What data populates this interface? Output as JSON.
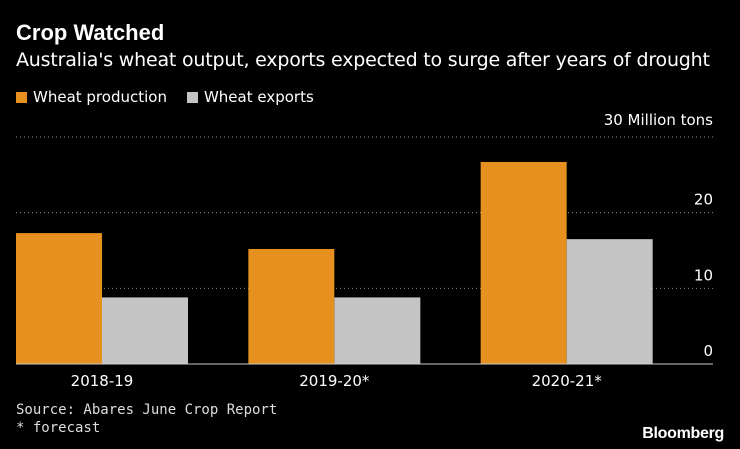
{
  "title": "Crop Watched",
  "subtitle": "Australia's wheat output, exports expected to surge after years of drought",
  "source": "Source: Abares June Crop Report",
  "note": "* forecast",
  "brand": "Bloomberg",
  "colors": {
    "production": "#e5901f",
    "exports": "#c4c4c4",
    "grid": "#888888",
    "background": "#000000"
  },
  "chart_data": {
    "type": "bar",
    "categories": [
      "2018-19",
      "2019-20*",
      "2020-21*"
    ],
    "series": [
      {
        "name": "Wheat production",
        "values": [
          17.3,
          15.2,
          26.7
        ]
      },
      {
        "name": "Wheat exports",
        "values": [
          8.8,
          8.8,
          16.5
        ]
      }
    ],
    "ylabel": "30 Million tons",
    "yticks": [
      "0",
      "10",
      "20"
    ],
    "ylim": [
      0,
      30
    ],
    "grid": true,
    "legend_position": "top-left"
  }
}
